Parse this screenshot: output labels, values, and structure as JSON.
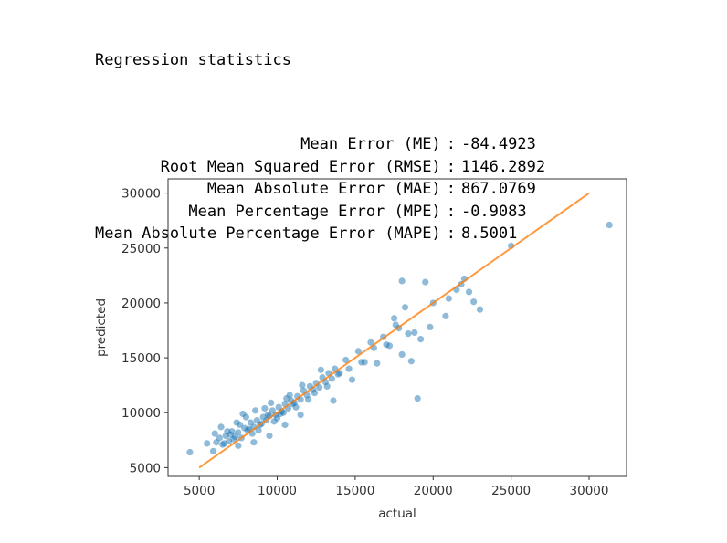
{
  "output": {
    "heading": "Regression statistics",
    "separator": ":",
    "metrics": [
      {
        "label": "Mean Error (ME)",
        "value": "-84.4923"
      },
      {
        "label": "Root Mean Squared Error (RMSE)",
        "value": "1146.2892"
      },
      {
        "label": "Mean Absolute Error (MAE)",
        "value": "867.0769"
      },
      {
        "label": "Mean Percentage Error (MPE)",
        "value": "-0.9083"
      },
      {
        "label": "Mean Absolute Percentage Error (MAPE)",
        "value": "8.5001"
      }
    ]
  },
  "chart_data": {
    "type": "scatter",
    "xlabel": "actual",
    "ylabel": "predicted",
    "xlim": [
      3000,
      32400
    ],
    "ylim": [
      4200,
      31300
    ],
    "xticks": [
      5000,
      10000,
      15000,
      20000,
      25000,
      30000
    ],
    "yticks": [
      5000,
      10000,
      15000,
      20000,
      25000,
      30000
    ],
    "grid": false,
    "colors": {
      "points": "#1f77b4",
      "line": "#ff7f0e",
      "axes": "#333333"
    },
    "reference_line": {
      "x": [
        5000,
        30000
      ],
      "y": [
        5000,
        30000
      ]
    },
    "points": {
      "x": [
        4400,
        5500,
        5900,
        6100,
        6300,
        6500,
        6700,
        6900,
        7100,
        7300,
        7500,
        7700,
        7900,
        8100,
        8300,
        8500,
        8700,
        8900,
        9100,
        9300,
        9500,
        9700,
        9900,
        10100,
        10300,
        10500,
        10700,
        10900,
        11100,
        11300,
        11500,
        11700,
        11900,
        12100,
        12300,
        12500,
        12700,
        12900,
        13100,
        13300,
        13500,
        13700,
        13900,
        6000,
        6400,
        6800,
        7200,
        7600,
        8000,
        8400,
        8800,
        9200,
        9600,
        10000,
        10400,
        10800,
        11200,
        11600,
        12000,
        12400,
        12800,
        13200,
        13600,
        7000,
        7400,
        7800,
        8200,
        8600,
        9000,
        9400,
        9800,
        10200,
        10600,
        11000,
        6600,
        7500,
        8500,
        9500,
        10500,
        11500,
        14000,
        14400,
        14800,
        15200,
        15600,
        16000,
        16400,
        16800,
        17200,
        17600,
        18000,
        18400,
        18800,
        19200,
        14600,
        15400,
        16200,
        17000,
        17800,
        18600,
        18000,
        19500,
        20000,
        20800,
        21500,
        22000,
        22300,
        22600,
        23000,
        21000,
        21800,
        19800,
        18200,
        17500,
        19000,
        25000,
        31300
      ],
      "y": [
        6400,
        7200,
        6500,
        7300,
        7700,
        7100,
        7900,
        7400,
        8300,
        7800,
        8200,
        7700,
        8600,
        8400,
        9100,
        8700,
        9300,
        8900,
        9600,
        9300,
        9700,
        10200,
        9800,
        10500,
        10100,
        10800,
        10400,
        11100,
        10900,
        11500,
        11200,
        12000,
        11600,
        12400,
        12100,
        12700,
        12300,
        13200,
        12800,
        13600,
        13100,
        14000,
        13500,
        8100,
        8700,
        8300,
        7600,
        8900,
        9600,
        8100,
        8400,
        10400,
        10900,
        9500,
        10000,
        11600,
        10500,
        12500,
        11200,
        11800,
        13900,
        12400,
        11100,
        8000,
        9100,
        9900,
        8500,
        10200,
        9000,
        9800,
        9200,
        9900,
        11300,
        10800,
        7200,
        7000,
        7300,
        7900,
        8900,
        9800,
        13600,
        14800,
        13000,
        15600,
        14600,
        16400,
        14500,
        16900,
        16100,
        18000,
        15300,
        17200,
        17300,
        16700,
        14000,
        14600,
        15900,
        16200,
        17700,
        14700,
        22000,
        21900,
        20000,
        18800,
        21200,
        22200,
        21000,
        20100,
        19400,
        20400,
        21700,
        17800,
        19600,
        18600,
        11300,
        25200,
        27100
      ]
    }
  }
}
